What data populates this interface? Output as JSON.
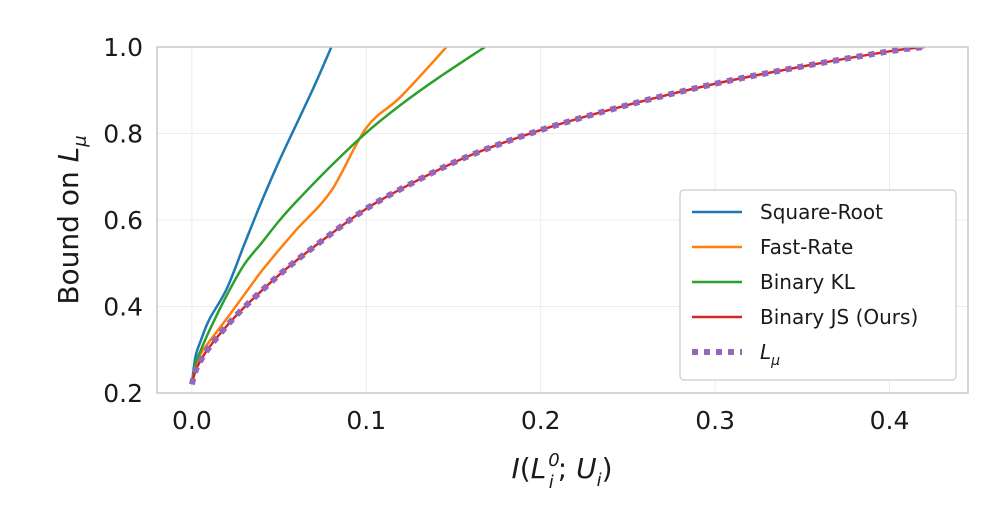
{
  "chart_data": {
    "type": "line",
    "xlim": [
      -0.02,
      0.445
    ],
    "ylim": [
      0.2,
      1.0
    ],
    "grid": true,
    "legend_placement": "bottom-right",
    "x_ticks": [
      0.0,
      0.1,
      0.2,
      0.3,
      0.4
    ],
    "x_tick_labels": [
      "0.0",
      "0.1",
      "0.2",
      "0.3",
      "0.4"
    ],
    "y_ticks": [
      0.2,
      0.4,
      0.6,
      0.8,
      1.0
    ],
    "y_tick_labels": [
      "0.2",
      "0.4",
      "0.6",
      "0.8",
      "1.0"
    ],
    "xlabel": {
      "italic_prefix": "I",
      "open": "(",
      "var1": "L",
      "var1_sub": "i",
      "var1_sup": "0",
      "sep": "; ",
      "var2": "U",
      "var2_sub": "i",
      "close": ")"
    },
    "ylabel": {
      "text": "Bound on ",
      "var": "L",
      "var_sub": "μ"
    },
    "series": [
      {
        "name": "Square-Root",
        "color": "#1f77b4",
        "style": "solid",
        "x": [
          0.0,
          0.002,
          0.005,
          0.01,
          0.02,
          0.03,
          0.04,
          0.05,
          0.06,
          0.07,
          0.08
        ],
        "y": [
          0.22,
          0.283,
          0.32,
          0.37,
          0.441,
          0.543,
          0.643,
          0.736,
          0.822,
          0.908,
          1.0
        ]
      },
      {
        "name": "Fast-Rate",
        "color": "#ff7f0e",
        "style": "solid",
        "x": [
          0.0,
          0.002,
          0.005,
          0.01,
          0.02,
          0.03,
          0.04,
          0.05,
          0.06,
          0.08,
          0.1,
          0.12,
          0.146
        ],
        "y": [
          0.22,
          0.258,
          0.29,
          0.319,
          0.372,
          0.427,
          0.482,
          0.531,
          0.578,
          0.668,
          0.813,
          0.886,
          1.0
        ]
      },
      {
        "name": "Binary KL",
        "color": "#2ca02c",
        "style": "solid",
        "x": [
          0.0,
          0.002,
          0.005,
          0.01,
          0.02,
          0.03,
          0.04,
          0.05,
          0.06,
          0.08,
          0.1,
          0.12,
          0.14,
          0.168
        ],
        "y": [
          0.22,
          0.268,
          0.298,
          0.344,
          0.426,
          0.497,
          0.547,
          0.598,
          0.643,
          0.726,
          0.802,
          0.867,
          0.925,
          1.0
        ]
      },
      {
        "name": "Binary JS (Ours)",
        "color": "#d62728",
        "style": "solid",
        "x": [
          0.0,
          0.002,
          0.005,
          0.01,
          0.02,
          0.03,
          0.05,
          0.07,
          0.1,
          0.13,
          0.16,
          0.2,
          0.25,
          0.3,
          0.35,
          0.4,
          0.42
        ],
        "y": [
          0.22,
          0.25,
          0.275,
          0.306,
          0.355,
          0.398,
          0.473,
          0.538,
          0.626,
          0.693,
          0.75,
          0.808,
          0.866,
          0.915,
          0.955,
          0.99,
          1.0
        ]
      },
      {
        "name": "L_mu",
        "legend_label": {
          "var": "L",
          "var_sub": "μ"
        },
        "color": "#9467bd",
        "style": "dotted",
        "x": [
          0.0,
          0.002,
          0.005,
          0.01,
          0.02,
          0.03,
          0.05,
          0.07,
          0.1,
          0.13,
          0.16,
          0.2,
          0.25,
          0.3,
          0.35,
          0.4,
          0.42
        ],
        "y": [
          0.22,
          0.25,
          0.275,
          0.306,
          0.355,
          0.398,
          0.473,
          0.538,
          0.626,
          0.693,
          0.75,
          0.808,
          0.866,
          0.915,
          0.955,
          0.99,
          1.0
        ]
      }
    ]
  }
}
